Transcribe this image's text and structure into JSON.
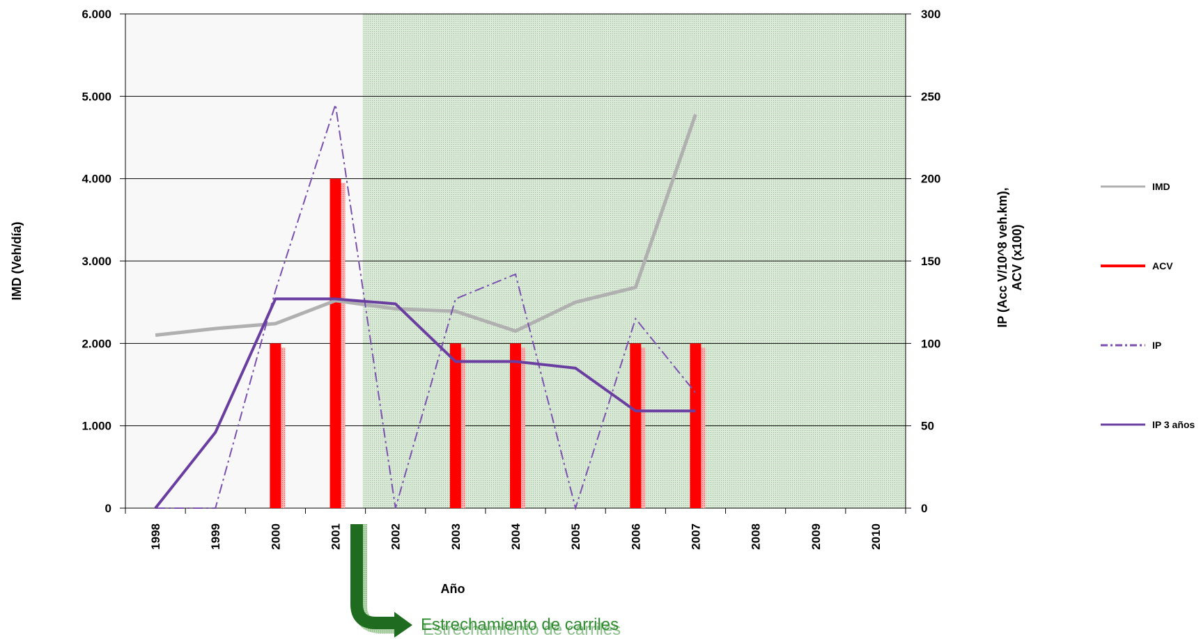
{
  "chart_data": {
    "type": "bar+line",
    "xlabel": "Año",
    "ylabel_left": "IMD (Veh/día)",
    "ylabel_right": "IP (Acc V/10^8 veh.km), ACV (x100)",
    "categories": [
      "1998",
      "1999",
      "2000",
      "2001",
      "2002",
      "2003",
      "2004",
      "2005",
      "2006",
      "2007",
      "2008",
      "2009",
      "2010"
    ],
    "left_axis": {
      "min": 0,
      "max": 6000,
      "ticks": [
        0,
        1000,
        2000,
        3000,
        4000,
        5000,
        6000
      ],
      "tick_labels": [
        "0",
        "1.000",
        "2.000",
        "3.000",
        "4.000",
        "5.000",
        "6.000"
      ]
    },
    "right_axis": {
      "min": 0,
      "max": 300,
      "ticks": [
        0,
        50,
        100,
        150,
        200,
        250,
        300
      ],
      "tick_labels": [
        "0",
        "50",
        "100",
        "150",
        "200",
        "250",
        "300"
      ]
    },
    "grid": true,
    "shaded_region": {
      "from_category": "2002",
      "to_category": "2010",
      "color": "#cfe3cf"
    },
    "legend_position": "right",
    "series": [
      {
        "name": "IMD",
        "type": "line",
        "axis": "left",
        "color": "#b0b0b0",
        "values": [
          2100,
          2180,
          2240,
          2520,
          2420,
          2390,
          2150,
          2500,
          2680,
          4780,
          null,
          null,
          null
        ]
      },
      {
        "name": "ACV",
        "type": "bar",
        "axis": "right",
        "color": "#ff0000",
        "values": [
          0,
          0,
          100,
          200,
          0,
          100,
          100,
          0,
          100,
          100,
          null,
          null,
          null
        ]
      },
      {
        "name": "IP",
        "type": "line",
        "style": "dash-dot",
        "axis": "right",
        "color": "#7a4fb0",
        "values": [
          0,
          0,
          132,
          245,
          0,
          127,
          142,
          0,
          115,
          70,
          null,
          null,
          null
        ]
      },
      {
        "name": "IP 3 años",
        "type": "line",
        "axis": "right",
        "color": "#6a3ea1",
        "values": [
          0,
          46,
          127,
          127,
          124,
          89,
          89,
          85,
          59,
          59,
          null,
          null,
          null
        ]
      }
    ],
    "annotation": {
      "text": "Estrechamiento de carriles",
      "at_category": "2001.5",
      "color": "#1a6e1a"
    }
  }
}
